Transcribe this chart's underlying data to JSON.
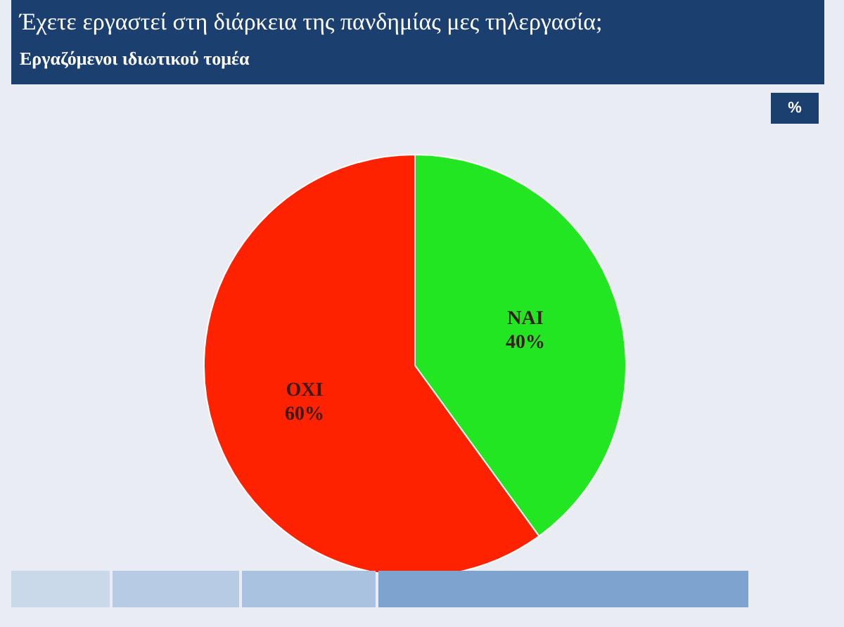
{
  "chart_data": {
    "type": "pie",
    "title": "Έχετε εργαστεί στη διάρκεια της πανδημίας μες τηλεργασία;",
    "subtitle": "Εργαζόμενοι ιδιωτικού τομέα",
    "categories": [
      "NAI",
      "OXI"
    ],
    "values": [
      40,
      60
    ],
    "colors": [
      "#22e622",
      "#ff2200"
    ],
    "value_labels": [
      "40%",
      "60%"
    ],
    "annotations": [
      "%"
    ],
    "legend": false
  }
}
